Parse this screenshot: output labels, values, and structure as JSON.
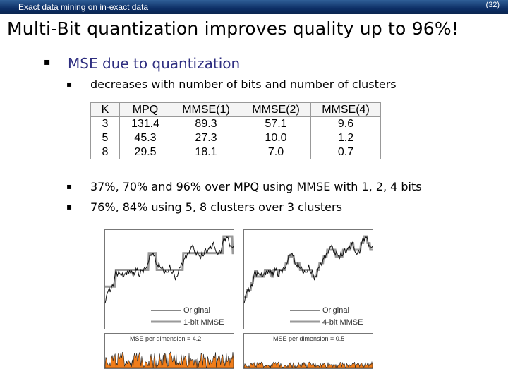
{
  "header": {
    "left_text": "Exact data mining on in-exact data",
    "page_number": "(32)"
  },
  "title": "Multi-Bit quantization improves quality up to 96%!",
  "bullets": {
    "main": "MSE due to quantization",
    "sub1": "decreases with number of bits and number of clusters",
    "sub2": "37%, 70% and 96% over MPQ using MMSE with 1, 2, 4 bits",
    "sub3": "76%, 84% using 5, 8 clusters over 3 clusters"
  },
  "table": {
    "headers": [
      "K",
      "MPQ",
      "MMSE(1)",
      "MMSE(2)",
      "MMSE(4)"
    ],
    "rows": [
      [
        "3",
        "131.4",
        "89.3",
        "57.1",
        "9.6"
      ],
      [
        "5",
        "45.3",
        "27.3",
        "10.0",
        "1.2"
      ],
      [
        "8",
        "29.5",
        "18.1",
        "7.0",
        "0.7"
      ]
    ]
  },
  "plots": {
    "left": {
      "legend_original": "Original",
      "legend_approx": "1-bit MMSE",
      "mse_text": "MSE per dimension = 4.2"
    },
    "right": {
      "legend_original": "Original",
      "legend_approx": "4-bit MMSE",
      "mse_text": "MSE per dimension = 0.5"
    }
  },
  "colors": {
    "header_bg": "#0d2f66",
    "bullet_main": "#2e2e80",
    "error_fill": "#f07d1a"
  }
}
